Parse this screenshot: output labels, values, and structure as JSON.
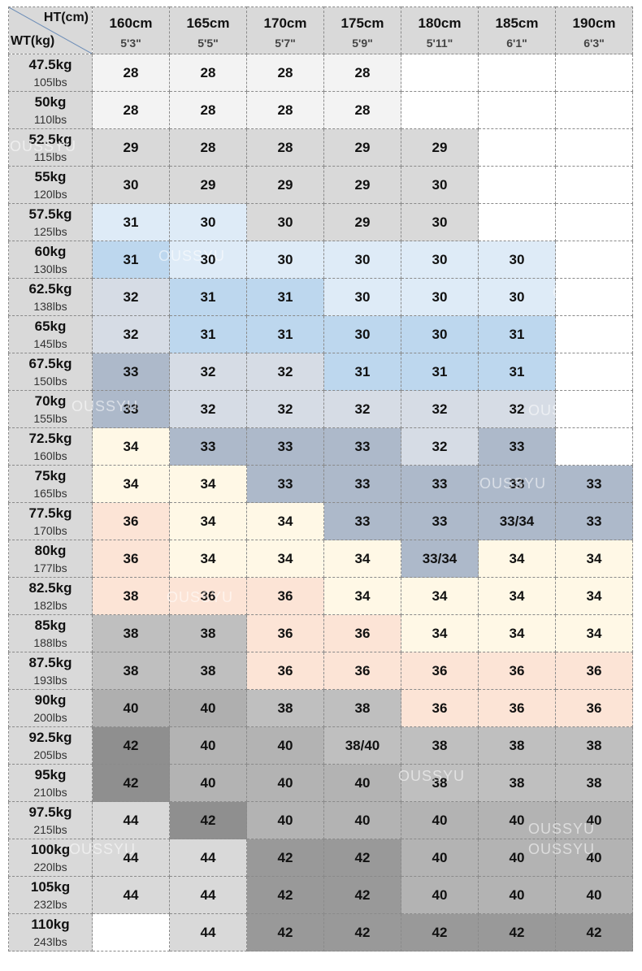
{
  "table": {
    "corner": {
      "height_label": "HT(cm)",
      "weight_label": "WT(kg)"
    },
    "columns": [
      {
        "cm": "160cm",
        "ft": "5'3\""
      },
      {
        "cm": "165cm",
        "ft": "5'5\""
      },
      {
        "cm": "170cm",
        "ft": "5'7\""
      },
      {
        "cm": "175cm",
        "ft": "5'9\""
      },
      {
        "cm": "180cm",
        "ft": "5'11\""
      },
      {
        "cm": "185cm",
        "ft": "6'1\""
      },
      {
        "cm": "190cm",
        "ft": "6'3\""
      }
    ],
    "rows": [
      {
        "kg": "47.5kg",
        "lbs": "105lbs",
        "sizes": [
          "28",
          "28",
          "28",
          "28",
          null,
          null,
          null
        ]
      },
      {
        "kg": "50kg",
        "lbs": "110lbs",
        "sizes": [
          "28",
          "28",
          "28",
          "28",
          null,
          null,
          null
        ]
      },
      {
        "kg": "52.5kg",
        "lbs": "115lbs",
        "sizes": [
          "29",
          "28",
          "28",
          "29",
          "29",
          null,
          null
        ]
      },
      {
        "kg": "55kg",
        "lbs": "120lbs",
        "sizes": [
          "30",
          "29",
          "29",
          "29",
          "30",
          null,
          null
        ]
      },
      {
        "kg": "57.5kg",
        "lbs": "125lbs",
        "sizes": [
          "31",
          "30",
          "30",
          "29",
          "30",
          null,
          null
        ]
      },
      {
        "kg": "60kg",
        "lbs": "130lbs",
        "sizes": [
          "31",
          "30",
          "30",
          "30",
          "30",
          "30",
          null
        ]
      },
      {
        "kg": "62.5kg",
        "lbs": "138lbs",
        "sizes": [
          "32",
          "31",
          "31",
          "30",
          "30",
          "30",
          null
        ]
      },
      {
        "kg": "65kg",
        "lbs": "145lbs",
        "sizes": [
          "32",
          "31",
          "31",
          "30",
          "30",
          "31",
          null
        ]
      },
      {
        "kg": "67.5kg",
        "lbs": "150lbs",
        "sizes": [
          "33",
          "32",
          "32",
          "31",
          "31",
          "31",
          null
        ]
      },
      {
        "kg": "70kg",
        "lbs": "155lbs",
        "sizes": [
          "33",
          "32",
          "32",
          "32",
          "32",
          "32",
          null
        ]
      },
      {
        "kg": "72.5kg",
        "lbs": "160lbs",
        "sizes": [
          "34",
          "33",
          "33",
          "33",
          "32",
          "33",
          null
        ]
      },
      {
        "kg": "75kg",
        "lbs": "165lbs",
        "sizes": [
          "34",
          "34",
          "33",
          "33",
          "33",
          "33",
          "33"
        ]
      },
      {
        "kg": "77.5kg",
        "lbs": "170lbs",
        "sizes": [
          "36",
          "34",
          "34",
          "33",
          "33",
          "33/34",
          "33"
        ]
      },
      {
        "kg": "80kg",
        "lbs": "177lbs",
        "sizes": [
          "36",
          "34",
          "34",
          "34",
          "33/34",
          "34",
          "34"
        ]
      },
      {
        "kg": "82.5kg",
        "lbs": "182lbs",
        "sizes": [
          "38",
          "36",
          "36",
          "34",
          "34",
          "34",
          "34"
        ]
      },
      {
        "kg": "85kg",
        "lbs": "188lbs",
        "sizes": [
          "38",
          "38",
          "36",
          "36",
          "34",
          "34",
          "34"
        ]
      },
      {
        "kg": "87.5kg",
        "lbs": "193lbs",
        "sizes": [
          "38",
          "38",
          "36",
          "36",
          "36",
          "36",
          "36"
        ]
      },
      {
        "kg": "90kg",
        "lbs": "200lbs",
        "sizes": [
          "40",
          "40",
          "38",
          "38",
          "36",
          "36",
          "36"
        ]
      },
      {
        "kg": "92.5kg",
        "lbs": "205lbs",
        "sizes": [
          "42",
          "40",
          "40",
          "38/40",
          "38",
          "38",
          "38"
        ]
      },
      {
        "kg": "95kg",
        "lbs": "210lbs",
        "sizes": [
          "42",
          "40",
          "40",
          "40",
          "38",
          "38",
          "38"
        ]
      },
      {
        "kg": "97.5kg",
        "lbs": "215lbs",
        "sizes": [
          "44",
          "42",
          "40",
          "40",
          "40",
          "40",
          "40"
        ]
      },
      {
        "kg": "100kg",
        "lbs": "220lbs",
        "sizes": [
          "44",
          "44",
          "42",
          "42",
          "40",
          "40",
          "40"
        ]
      },
      {
        "kg": "105kg",
        "lbs": "232lbs",
        "sizes": [
          "44",
          "44",
          "42",
          "42",
          "40",
          "40",
          "40"
        ]
      },
      {
        "kg": "110kg",
        "lbs": "243lbs",
        "sizes": [
          null,
          "44",
          "42",
          "42",
          "42",
          "42",
          "42"
        ]
      }
    ],
    "cell_colors": [
      [
        "#f3f3f3",
        "#f3f3f3",
        "#f3f3f3",
        "#f3f3f3",
        "#ffffff",
        "#ffffff",
        "#ffffff"
      ],
      [
        "#f3f3f3",
        "#f3f3f3",
        "#f3f3f3",
        "#f3f3f3",
        "#ffffff",
        "#ffffff",
        "#ffffff"
      ],
      [
        "#d9d9d9",
        "#d9d9d9",
        "#d9d9d9",
        "#d9d9d9",
        "#d9d9d9",
        "#ffffff",
        "#ffffff"
      ],
      [
        "#d9d9d9",
        "#d9d9d9",
        "#d9d9d9",
        "#d9d9d9",
        "#d9d9d9",
        "#ffffff",
        "#ffffff"
      ],
      [
        "#deebf7",
        "#deebf7",
        "#d9d9d9",
        "#d9d9d9",
        "#d9d9d9",
        "#ffffff",
        "#ffffff"
      ],
      [
        "#bdd7ee",
        "#deebf7",
        "#deebf7",
        "#deebf7",
        "#deebf7",
        "#deebf7",
        "#ffffff"
      ],
      [
        "#d6dce5",
        "#bdd7ee",
        "#bdd7ee",
        "#deebf7",
        "#deebf7",
        "#deebf7",
        "#ffffff"
      ],
      [
        "#d6dce5",
        "#bdd7ee",
        "#bdd7ee",
        "#bdd7ee",
        "#bdd7ee",
        "#bdd7ee",
        "#ffffff"
      ],
      [
        "#adb9ca",
        "#d6dce5",
        "#d6dce5",
        "#bdd7ee",
        "#bdd7ee",
        "#bdd7ee",
        "#ffffff"
      ],
      [
        "#adb9ca",
        "#d6dce5",
        "#d6dce5",
        "#d6dce5",
        "#d6dce5",
        "#d6dce5",
        "#ffffff"
      ],
      [
        "#fff8e6",
        "#adb9ca",
        "#adb9ca",
        "#adb9ca",
        "#d6dce5",
        "#adb9ca",
        "#ffffff"
      ],
      [
        "#fff8e6",
        "#fff8e6",
        "#adb9ca",
        "#adb9ca",
        "#adb9ca",
        "#adb9ca",
        "#adb9ca"
      ],
      [
        "#fce4d6",
        "#fff8e6",
        "#fff8e6",
        "#adb9ca",
        "#adb9ca",
        "#adb9ca",
        "#adb9ca"
      ],
      [
        "#fce4d6",
        "#fff8e6",
        "#fff8e6",
        "#fff8e6",
        "#adb9ca",
        "#fff8e6",
        "#fff8e6"
      ],
      [
        "#fce4d6",
        "#fce4d6",
        "#fce4d6",
        "#fff8e6",
        "#fff8e6",
        "#fff8e6",
        "#fff8e6"
      ],
      [
        "#bfbfbf",
        "#bfbfbf",
        "#fce4d6",
        "#fce4d6",
        "#fff8e6",
        "#fff8e6",
        "#fff8e6"
      ],
      [
        "#bfbfbf",
        "#bfbfbf",
        "#fce4d6",
        "#fce4d6",
        "#fce4d6",
        "#fce4d6",
        "#fce4d6"
      ],
      [
        "#afafaf",
        "#afafaf",
        "#bfbfbf",
        "#bfbfbf",
        "#fce4d6",
        "#fce4d6",
        "#fce4d6"
      ],
      [
        "#8f8f8f",
        "#b3b3b3",
        "#b3b3b3",
        "#bfbfbf",
        "#bfbfbf",
        "#bfbfbf",
        "#bfbfbf"
      ],
      [
        "#8f8f8f",
        "#b3b3b3",
        "#b3b3b3",
        "#b3b3b3",
        "#bfbfbf",
        "#bfbfbf",
        "#bfbfbf"
      ],
      [
        "#d9d9d9",
        "#8f8f8f",
        "#b3b3b3",
        "#b3b3b3",
        "#b3b3b3",
        "#b3b3b3",
        "#b3b3b3"
      ],
      [
        "#d9d9d9",
        "#d9d9d9",
        "#999999",
        "#999999",
        "#b3b3b3",
        "#b3b3b3",
        "#b3b3b3"
      ],
      [
        "#d9d9d9",
        "#d9d9d9",
        "#999999",
        "#999999",
        "#b3b3b3",
        "#b3b3b3",
        "#b3b3b3"
      ],
      [
        "#ffffff",
        "#d9d9d9",
        "#999999",
        "#999999",
        "#999999",
        "#999999",
        "#999999"
      ]
    ],
    "watermark": "OUSSYU"
  }
}
